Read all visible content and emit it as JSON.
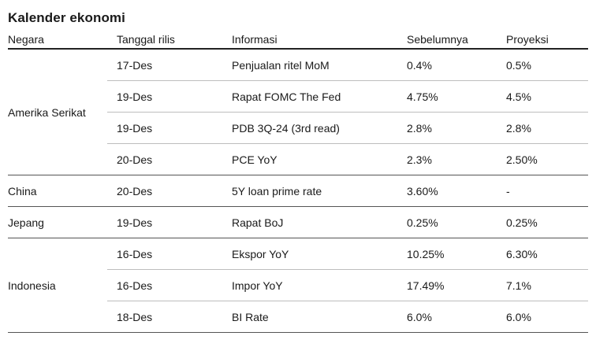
{
  "title": "Kalender ekonomi",
  "headers": {
    "country": "Negara",
    "date": "Tanggal rilis",
    "info": "Informasi",
    "previous": "Sebelumnya",
    "projection": "Proyeksi"
  },
  "groups": [
    {
      "country": "Amerika Serikat",
      "rows": [
        {
          "date": "17-Des",
          "info": "Penjualan ritel MoM",
          "previous": "0.4%",
          "projection": "0.5%"
        },
        {
          "date": "19-Des",
          "info": "Rapat FOMC The Fed",
          "previous": "4.75%",
          "projection": "4.5%"
        },
        {
          "date": "19-Des",
          "info": "PDB 3Q-24 (3rd read)",
          "previous": "2.8%",
          "projection": "2.8%"
        },
        {
          "date": "20-Des",
          "info": "PCE YoY",
          "previous": "2.3%",
          "projection": "2.50%"
        }
      ]
    },
    {
      "country": "China",
      "rows": [
        {
          "date": "20-Des",
          "info": "5Y loan prime rate",
          "previous": "3.60%",
          "projection": "-"
        }
      ]
    },
    {
      "country": "Jepang",
      "rows": [
        {
          "date": "19-Des",
          "info": "Rapat BoJ",
          "previous": "0.25%",
          "projection": "0.25%"
        }
      ]
    },
    {
      "country": "Indonesia",
      "rows": [
        {
          "date": "16-Des",
          "info": "Ekspor YoY",
          "previous": "10.25%",
          "projection": "6.30%"
        },
        {
          "date": "16-Des",
          "info": "Impor YoY",
          "previous": "17.49%",
          "projection": "7.1%"
        },
        {
          "date": "18-Des",
          "info": "BI Rate",
          "previous": "6.0%",
          "projection": "6.0%"
        }
      ]
    }
  ]
}
